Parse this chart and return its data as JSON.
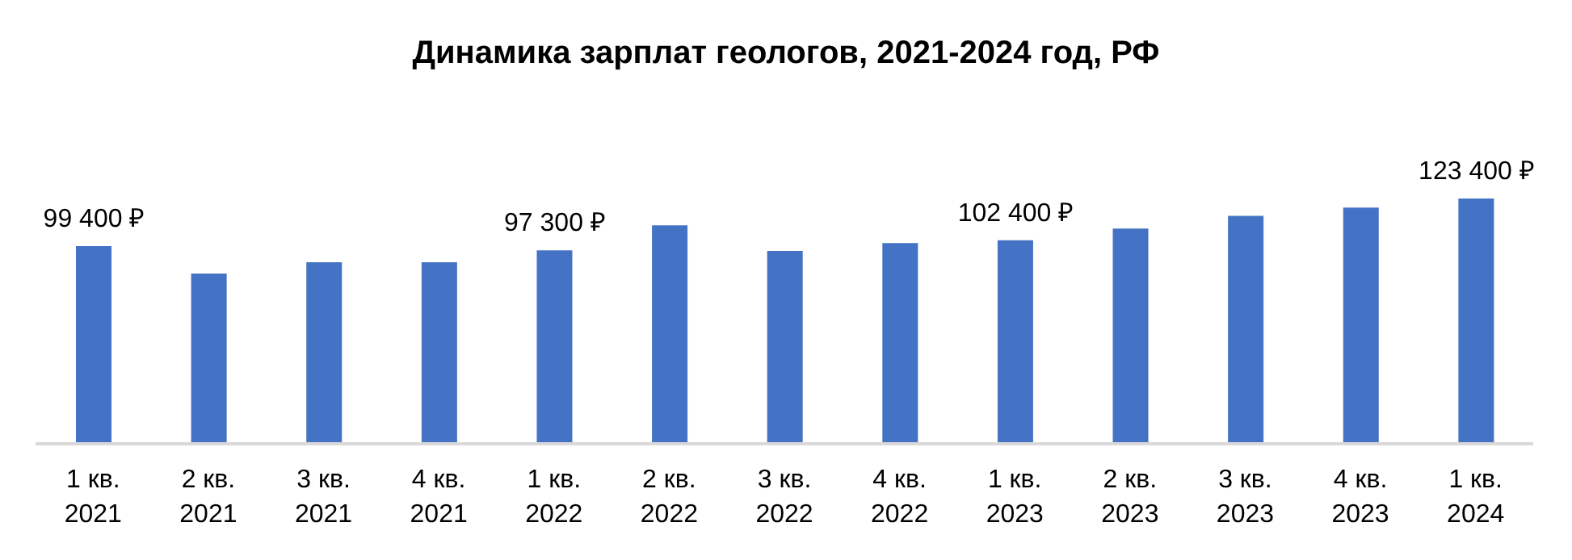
{
  "chart_data": {
    "type": "bar",
    "title": "Динамика зарплат геологов, 2021-2024 год, РФ",
    "categories": [
      "1 кв. 2021",
      "2 кв. 2021",
      "3 кв. 2021",
      "4 кв. 2021",
      "1 кв. 2022",
      "2 кв. 2022",
      "3 кв. 2022",
      "4 кв. 2022",
      "1 кв. 2023",
      "2 кв. 2023",
      "3 кв. 2023",
      "4 кв. 2023",
      "1 кв. 2024"
    ],
    "values": [
      99400,
      85600,
      91300,
      91300,
      97300,
      109900,
      97000,
      101000,
      102400,
      108300,
      114700,
      118800,
      123400
    ],
    "value_labels": [
      "99 400 ₽",
      null,
      null,
      null,
      "97 300 ₽",
      null,
      null,
      null,
      "102 400 ₽",
      null,
      null,
      null,
      "123 400 ₽"
    ],
    "color": "#4472c4"
  }
}
